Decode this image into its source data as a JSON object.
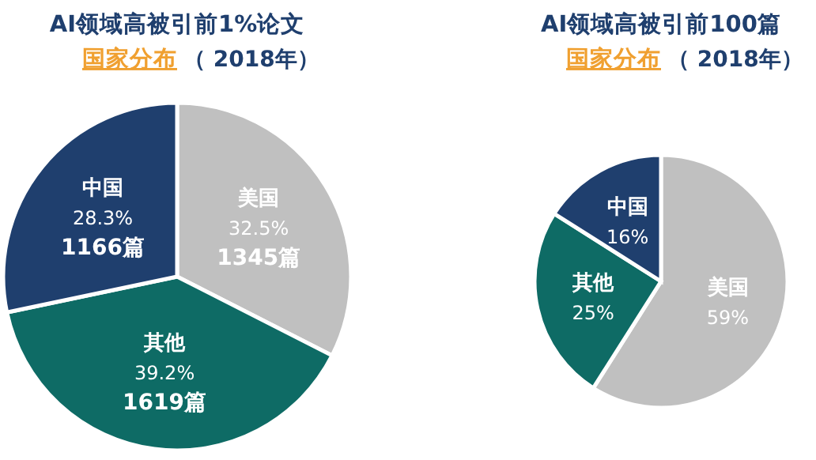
{
  "chart_data": [
    {
      "type": "pie",
      "title": "AI领域高被引前1%论文",
      "subtitle": "国家分布",
      "annotations": [
        "（ 2018年）",
        {
          "text": "1345篇",
          "x": "美国"
        },
        {
          "text": "1619篇",
          "x": "其他"
        },
        {
          "text": "1166篇",
          "x": "中国"
        }
      ],
      "categories": [
        "美国",
        "其他",
        "中国"
      ],
      "values": [
        32.5,
        39.2,
        28.3
      ],
      "value_labels": [
        "32.5%",
        "39.2%",
        "28.3%"
      ],
      "colors": [
        "#c0c0c0",
        "#0e6b65",
        "#1f3f6e"
      ]
    },
    {
      "type": "pie",
      "title": "AI领域高被引前100篇",
      "subtitle": "国家分布",
      "annotations": [
        "（ 2018年）"
      ],
      "categories": [
        "美国",
        "其他",
        "中国"
      ],
      "values": [
        59,
        25,
        16
      ],
      "value_labels": [
        "59%",
        "25%",
        "16%"
      ],
      "colors": [
        "#c0c0c0",
        "#0e6b65",
        "#1f3f6e"
      ]
    }
  ]
}
